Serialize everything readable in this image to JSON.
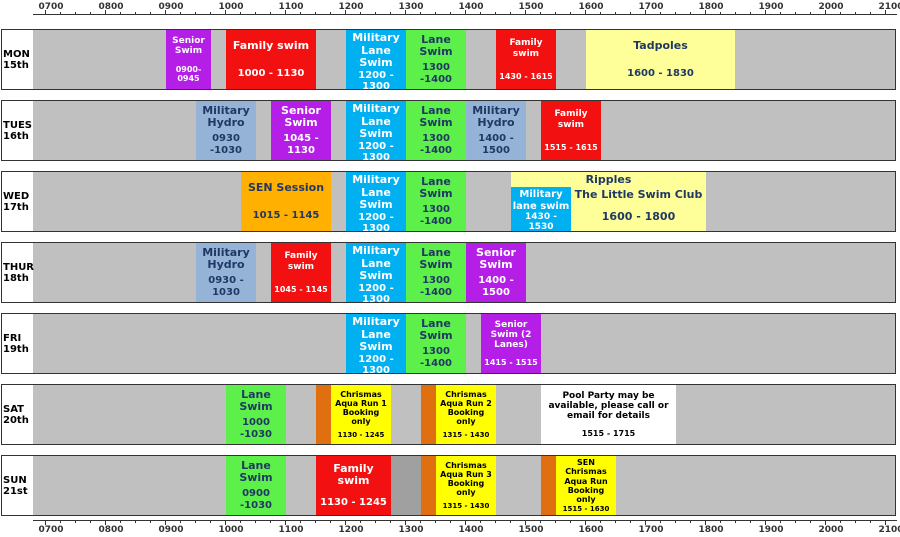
{
  "axis": {
    "hours": [
      "0700",
      "0800",
      "0900",
      "1000",
      "1100",
      "1200",
      "1300",
      "1400",
      "1500",
      "1600",
      "1700",
      "1800",
      "1900",
      "2000",
      "2100"
    ]
  },
  "days": [
    {
      "day": "MON",
      "date": "15th",
      "sessions": [
        {
          "title": "Senior Swim",
          "time": "0900-0945"
        },
        {
          "title": "Family swim",
          "time": "1000 - 1130"
        },
        {
          "title": "Military Lane Swim",
          "time": "1200 - 1300"
        },
        {
          "title": "Lane Swim",
          "time": "1300 -1400"
        },
        {
          "title": "Family swim",
          "time": "1430 - 1615"
        },
        {
          "title": "Tadpoles",
          "time": "1600 - 1830"
        }
      ]
    },
    {
      "day": "TUES",
      "date": "16th",
      "sessions": [
        {
          "title": "Military Hydro",
          "time": "0930 -1030"
        },
        {
          "title": "Senior Swim",
          "time": "1045 - 1130"
        },
        {
          "title": "Military Lane Swim",
          "time": "1200 - 1300"
        },
        {
          "title": "Lane Swim",
          "time": "1300 -1400"
        },
        {
          "title": "Military Hydro",
          "time": "1400 - 1500"
        },
        {
          "title": "Family swim",
          "time": "1515 - 1615"
        }
      ]
    },
    {
      "day": "WED",
      "date": "17th",
      "sessions": [
        {
          "title": "SEN Session",
          "time": "1015 - 1145"
        },
        {
          "title": "Military Lane Swim",
          "time": "1200 - 1300"
        },
        {
          "title": "Lane Swim",
          "time": "1300 -1400"
        },
        {
          "title": "Ripples",
          "subtitle": "The Little Swim Club",
          "time": "1600 - 1800"
        },
        {
          "title": "Military lane swim",
          "time": "1430 - 1530"
        }
      ]
    },
    {
      "day": "THUR",
      "date": "18th",
      "sessions": [
        {
          "title": "Military Hydro",
          "time": "0930 - 1030"
        },
        {
          "title": "Family swim",
          "time": "1045 - 1145"
        },
        {
          "title": "Military Lane Swim",
          "time": "1200 - 1300"
        },
        {
          "title": "Lane Swim",
          "time": "1300 -1400"
        },
        {
          "title": "Senior Swim",
          "time": "1400 - 1500"
        }
      ]
    },
    {
      "day": "FRI",
      "date": "19th",
      "sessions": [
        {
          "title": "Military Lane Swim",
          "time": "1200 - 1300"
        },
        {
          "title": "Lane Swim",
          "time": "1300 -1400"
        },
        {
          "title": "Senior Swim (2 Lanes)",
          "time": "1415 - 1515"
        }
      ]
    },
    {
      "day": "SAT",
      "date": "20th",
      "sessions": [
        {
          "title": "Lane Swim",
          "time": "1000 -1030"
        },
        {
          "title": "Chrismas Aqua Run 1 Booking only",
          "time": "1130 - 1245"
        },
        {
          "title": "Chrismas Aqua Run 2 Booking only",
          "time": "1315 - 1430"
        },
        {
          "title": "Pool Party may be available, please call or email for details",
          "time": "1515 - 1715"
        }
      ]
    },
    {
      "day": "SUN",
      "date": "21st",
      "sessions": [
        {
          "title": "Lane Swim",
          "time": "0900 -1030"
        },
        {
          "title": "Family swim",
          "time": "1130 - 1245"
        },
        {
          "title": "Chrismas Aqua Run 3 Booking only",
          "time": "1315 - 1430"
        },
        {
          "title": "SEN Chrismas Aqua Run Booking only",
          "time": "1515 - 1630"
        }
      ]
    }
  ]
}
